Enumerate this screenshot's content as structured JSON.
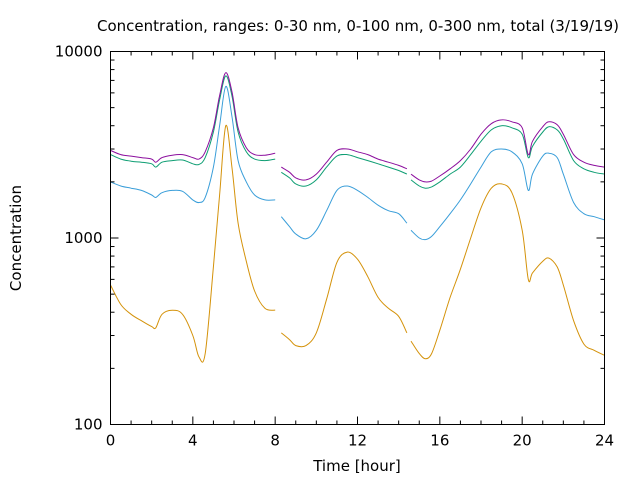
{
  "chart_data": {
    "type": "line",
    "title": "Concentration, ranges: 0-30 nm, 0-100 nm, 0-300 nm, total (3/19/19)",
    "xlabel": "Time [hour]",
    "ylabel": "Concentration",
    "xlim": [
      0,
      24
    ],
    "ylim": [
      100,
      10000
    ],
    "yscale": "log",
    "grid": false,
    "legend": "none",
    "x_ticks": [
      0,
      4,
      8,
      12,
      16,
      20,
      24
    ],
    "x_tick_labels": [
      "0",
      "4",
      "8",
      "12",
      "16",
      "20",
      "24"
    ],
    "y_ticks": [
      100,
      1000,
      10000
    ],
    "y_tick_labels": [
      "100",
      "1000",
      "10000"
    ],
    "series": [
      {
        "color": "#d4920a",
        "segments": [
          {
            "x": [
              0,
              0.5,
              1,
              1.5,
              2,
              2.2,
              2.5,
              3,
              3.5,
              4,
              4.3,
              4.6,
              5,
              5.3,
              5.6,
              5.9,
              6.2,
              6.6,
              7,
              7.5,
              8
            ],
            "y": [
              560,
              440,
              390,
              360,
              335,
              330,
              390,
              410,
              390,
              300,
              230,
              240,
              700,
              1700,
              4000,
              2400,
              1200,
              750,
              520,
              420,
              410
            ]
          },
          {
            "x": [
              8.3,
              8.7,
              9,
              9.5,
              10,
              10.5,
              11,
              11.5,
              12,
              12.5,
              13,
              13.5,
              14,
              14.4
            ],
            "y": [
              310,
              285,
              265,
              265,
              310,
              470,
              740,
              840,
              770,
              620,
              480,
              420,
              380,
              310
            ]
          },
          {
            "x": [
              14.6,
              15,
              15.3,
              15.6,
              16,
              16.5,
              17,
              17.5,
              18,
              18.5,
              19,
              19.5,
              20,
              20.3,
              20.5,
              21,
              21.3,
              21.7,
              22,
              22.5,
              23,
              23.5,
              24
            ],
            "y": [
              280,
              240,
              225,
              240,
              320,
              480,
              680,
              1000,
              1450,
              1850,
              1950,
              1750,
              1100,
              600,
              650,
              750,
              780,
              700,
              560,
              360,
              270,
              250,
              235
            ]
          }
        ]
      },
      {
        "color": "#3a9ed9",
        "segments": [
          {
            "x": [
              0,
              0.5,
              1,
              1.5,
              2,
              2.2,
              2.5,
              3,
              3.5,
              4,
              4.3,
              4.6,
              5,
              5.3,
              5.6,
              5.9,
              6.2,
              6.6,
              7,
              7.5,
              8
            ],
            "y": [
              2000,
              1900,
              1850,
              1800,
              1700,
              1650,
              1750,
              1800,
              1780,
              1600,
              1550,
              1650,
              2400,
              4000,
              6500,
              4500,
              2600,
              2000,
              1700,
              1600,
              1600
            ]
          },
          {
            "x": [
              8.3,
              8.7,
              9,
              9.5,
              10,
              10.5,
              11,
              11.5,
              12,
              12.5,
              13,
              13.5,
              14,
              14.4
            ],
            "y": [
              1300,
              1150,
              1050,
              990,
              1100,
              1400,
              1800,
              1900,
              1800,
              1650,
              1500,
              1400,
              1350,
              1200
            ]
          },
          {
            "x": [
              14.6,
              15,
              15.3,
              15.6,
              16,
              16.5,
              17,
              17.5,
              18,
              18.5,
              19,
              19.5,
              20,
              20.3,
              20.5,
              21,
              21.3,
              21.7,
              22,
              22.5,
              23,
              23.5,
              24
            ],
            "y": [
              1100,
              1000,
              980,
              1020,
              1150,
              1350,
              1600,
              1950,
              2400,
              2900,
              3000,
              2900,
              2500,
              1800,
              2200,
              2750,
              2850,
              2700,
              2200,
              1550,
              1350,
              1300,
              1250
            ]
          }
        ]
      },
      {
        "color": "#0e9e73",
        "segments": [
          {
            "x": [
              0,
              0.5,
              1,
              1.5,
              2,
              2.2,
              2.5,
              3,
              3.5,
              4,
              4.3,
              4.6,
              5,
              5.3,
              5.6,
              5.9,
              6.2,
              6.6,
              7,
              7.5,
              8
            ],
            "y": [
              2800,
              2650,
              2580,
              2550,
              2500,
              2400,
              2550,
              2600,
              2620,
              2500,
              2480,
              2700,
              3700,
              5500,
              7400,
              5800,
              3700,
              2900,
              2650,
              2600,
              2650
            ]
          },
          {
            "x": [
              8.3,
              8.7,
              9,
              9.5,
              10,
              10.5,
              11,
              11.5,
              12,
              12.5,
              13,
              13.5,
              14,
              14.4
            ],
            "y": [
              2250,
              2100,
              1950,
              1900,
              2050,
              2400,
              2750,
              2800,
              2700,
              2600,
              2500,
              2400,
              2300,
              2200
            ]
          },
          {
            "x": [
              14.6,
              15,
              15.3,
              15.6,
              16,
              16.5,
              17,
              17.5,
              18,
              18.5,
              19,
              19.5,
              20,
              20.3,
              20.5,
              21,
              21.3,
              21.7,
              22,
              22.5,
              23,
              23.5,
              24
            ],
            "y": [
              2050,
              1900,
              1850,
              1880,
              2000,
              2200,
              2400,
              2800,
              3300,
              3800,
              4000,
              3900,
              3600,
              2700,
              3100,
              3700,
              3950,
              3800,
              3400,
              2600,
              2350,
              2250,
              2200
            ]
          }
        ]
      },
      {
        "color": "#8c0f9e",
        "segments": [
          {
            "x": [
              0,
              0.5,
              1,
              1.5,
              2,
              2.2,
              2.5,
              3,
              3.5,
              4,
              4.3,
              4.6,
              5,
              5.3,
              5.6,
              5.9,
              6.2,
              6.6,
              7,
              7.5,
              8
            ],
            "y": [
              2950,
              2800,
              2750,
              2700,
              2650,
              2550,
              2700,
              2780,
              2800,
              2700,
              2650,
              2900,
              3900,
              5800,
              7700,
              6100,
              3900,
              3050,
              2800,
              2780,
              2850
            ]
          },
          {
            "x": [
              8.3,
              8.7,
              9,
              9.5,
              10,
              10.5,
              11,
              11.5,
              12,
              12.5,
              13,
              13.5,
              14,
              14.4
            ],
            "y": [
              2400,
              2250,
              2100,
              2050,
              2200,
              2550,
              2950,
              3000,
              2900,
              2800,
              2650,
              2550,
              2450,
              2350
            ]
          },
          {
            "x": [
              14.6,
              15,
              15.3,
              15.6,
              16,
              16.5,
              17,
              17.5,
              18,
              18.5,
              19,
              19.5,
              20,
              20.3,
              20.5,
              21,
              21.3,
              21.7,
              22,
              22.5,
              23,
              23.5,
              24
            ],
            "y": [
              2200,
              2050,
              2000,
              2020,
              2150,
              2350,
              2600,
              3000,
              3600,
              4100,
              4300,
              4200,
              3900,
              2800,
              3300,
              3950,
              4200,
              4050,
              3600,
              2800,
              2550,
              2450,
              2400
            ]
          }
        ]
      }
    ]
  }
}
